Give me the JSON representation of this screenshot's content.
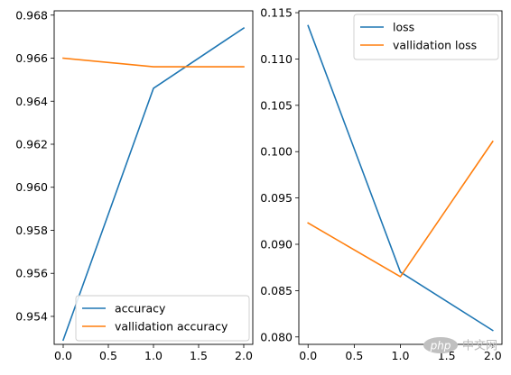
{
  "chart_data": [
    {
      "type": "line",
      "x": [
        0,
        1,
        2
      ],
      "series": [
        {
          "name": "accuracy",
          "values": [
            0.9529,
            0.9646,
            0.9674
          ],
          "color": "#1f77b4"
        },
        {
          "name": "vallidation accuracy",
          "values": [
            0.966,
            0.9656,
            0.9656
          ],
          "color": "#ff7f0e"
        }
      ],
      "xlim": [
        -0.1,
        2.1
      ],
      "ylim": [
        0.9527,
        0.9682
      ],
      "xticks": [
        "0.0",
        "0.5",
        "1.0",
        "1.5",
        "2.0"
      ],
      "yticks": [
        "0.954",
        "0.956",
        "0.958",
        "0.960",
        "0.962",
        "0.964",
        "0.966",
        "0.968"
      ],
      "grid": false,
      "legend_position": "bottom-right"
    },
    {
      "type": "line",
      "x": [
        0,
        1,
        2
      ],
      "series": [
        {
          "name": "loss",
          "values": [
            0.1136,
            0.087,
            0.0807
          ],
          "color": "#1f77b4"
        },
        {
          "name": "vallidation loss",
          "values": [
            0.0923,
            0.0865,
            0.1011
          ],
          "color": "#ff7f0e"
        }
      ],
      "xlim": [
        -0.1,
        2.1
      ],
      "ylim": [
        0.0792,
        0.1152
      ],
      "xticks": [
        "0.0",
        "0.5",
        "1.0",
        "1.5",
        "2.0"
      ],
      "yticks": [
        "0.080",
        "0.085",
        "0.090",
        "0.095",
        "0.100",
        "0.105",
        "0.110",
        "0.115"
      ],
      "grid": false,
      "legend_position": "top-right"
    }
  ],
  "watermark": {
    "logo": "php",
    "text": "中文网"
  }
}
